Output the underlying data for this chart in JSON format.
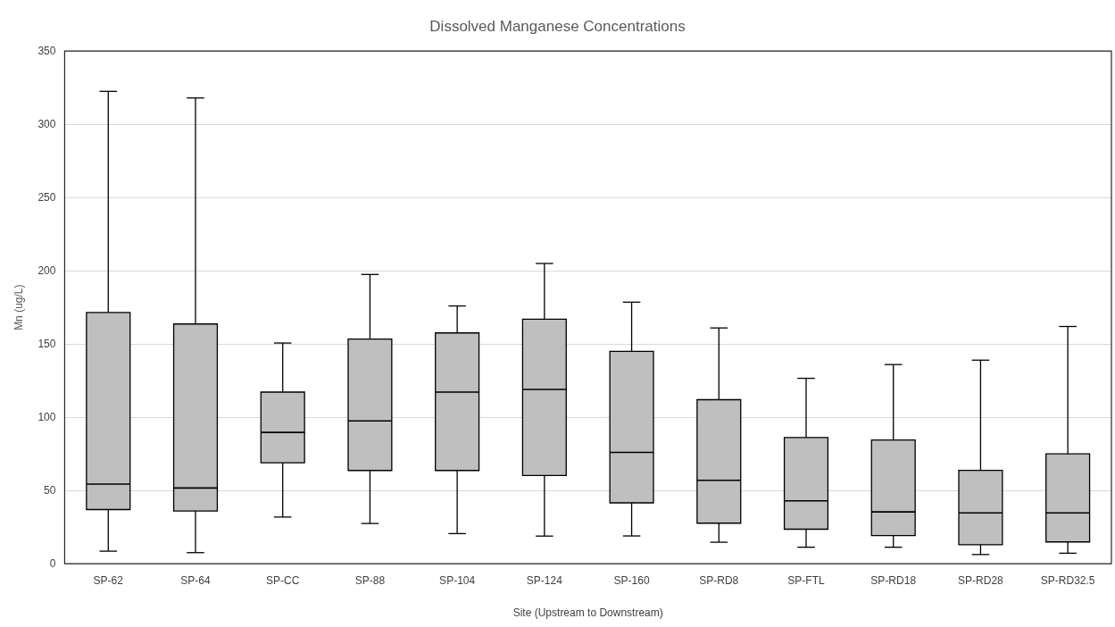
{
  "chart_data": {
    "type": "box",
    "title": "Dissolved Manganese Concentrations",
    "xlabel": "Site (Upstream to Downstream)",
    "ylabel": "Mn (ug/L)",
    "categories": [
      "SP-62",
      "SP-64",
      "SP-CC",
      "SP-88",
      "SP-104",
      "SP-124",
      "SP-160",
      "SP-RD8",
      "SP-FTL",
      "SP-RD18",
      "SP-RD28",
      "SP-RD32.5"
    ],
    "color": "#bfbfbf",
    "boxes": [
      {
        "low": 8.6,
        "q1": 37,
        "median": 54.4,
        "q3": 171.6,
        "high": 322.5
      },
      {
        "low": 7.6,
        "q1": 36,
        "median": 51.7,
        "q3": 163.7,
        "high": 318
      },
      {
        "low": 31.9,
        "q1": 68.9,
        "median": 89.7,
        "q3": 117.2,
        "high": 150.7
      },
      {
        "low": 27.5,
        "q1": 63.7,
        "median": 97.5,
        "q3": 153.4,
        "high": 197.5
      },
      {
        "low": 20.6,
        "q1": 63.7,
        "median": 117.2,
        "q3": 157.6,
        "high": 176
      },
      {
        "low": 18.9,
        "q1": 60.3,
        "median": 119,
        "q3": 167,
        "high": 205
      },
      {
        "low": 19,
        "q1": 41.6,
        "median": 76,
        "q3": 145,
        "high": 178.6
      },
      {
        "low": 14.7,
        "q1": 27.7,
        "median": 57,
        "q3": 112,
        "high": 161
      },
      {
        "low": 11.3,
        "q1": 23.6,
        "median": 43,
        "q3": 86.2,
        "high": 126.6
      },
      {
        "low": 11.3,
        "q1": 19.3,
        "median": 35.4,
        "q3": 84.5,
        "high": 136
      },
      {
        "low": 6.3,
        "q1": 13,
        "median": 34.7,
        "q3": 63.8,
        "high": 139
      },
      {
        "low": 7.2,
        "q1": 14.9,
        "median": 34.7,
        "q3": 75,
        "high": 162
      }
    ],
    "ylim": [
      0,
      350
    ],
    "yticks": [
      0,
      50,
      100,
      150,
      200,
      250,
      300,
      350
    ],
    "grid": "y",
    "legend": false
  }
}
